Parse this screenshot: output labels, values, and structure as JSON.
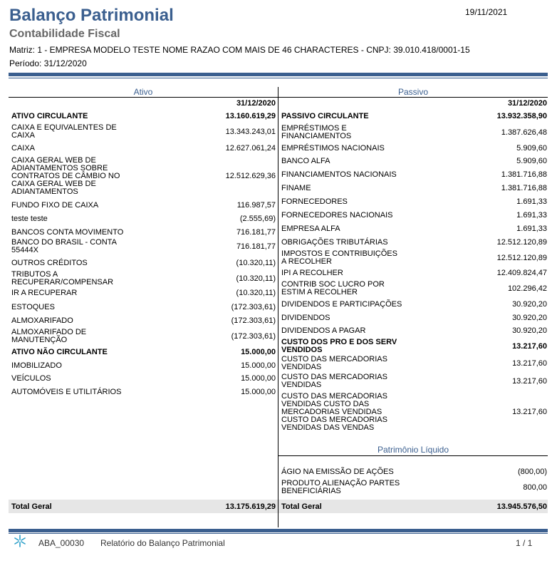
{
  "header": {
    "title": "Balanço Patrimonial",
    "subtitle": "Contabilidade Fiscal",
    "company": "Matriz: 1 - EMPRESA MODELO TESTE NOME RAZAO COM MAIS DE 46 CHARACTERES - CNPJ: 39.010.418/0001-15",
    "period": "Período: 31/12/2020",
    "date": "19/11/2021"
  },
  "ativo": {
    "heading": "Ativo",
    "date_col": "31/12/2020",
    "rows": [
      {
        "label": "ATIVO CIRCULANTE",
        "value": "13.160.619,29",
        "bold": true
      },
      {
        "label": "CAIXA E EQUIVALENTES DE CAIXA",
        "value": "13.343.243,01"
      },
      {
        "label": "CAIXA",
        "value": "12.627.061,24"
      },
      {
        "label": "CAIXA GERAL WEB DE ADIANTAMENTOS SOBRE CONTRATOS DE CÂMBIO NO CAIXA GERAL WEB DE ADIANTAMENTOS",
        "value": "12.512.629,36"
      },
      {
        "label": "FUNDO FIXO DE CAIXA",
        "value": "116.987,57"
      },
      {
        "label": "teste teste",
        "value": "(2.555,69)"
      },
      {
        "label": "BANCOS CONTA MOVIMENTO",
        "value": "716.181,77"
      },
      {
        "label": "BANCO DO BRASIL - CONTA 55444X",
        "value": "716.181,77"
      },
      {
        "label": "OUTROS CRÉDITOS",
        "value": "(10.320,11)"
      },
      {
        "label": "TRIBUTOS A RECUPERAR/COMPENSAR",
        "value": "(10.320,11)"
      },
      {
        "label": "IR A RECUPERAR",
        "value": "(10.320,11)"
      },
      {
        "label": "ESTOQUES",
        "value": "(172.303,61)"
      },
      {
        "label": "ALMOXARIFADO",
        "value": "(172.303,61)"
      },
      {
        "label": "ALMOXARIFADO DE MANUTENÇÃO",
        "value": "(172.303,61)"
      },
      {
        "label": "ATIVO NÃO CIRCULANTE",
        "value": "15.000,00",
        "bold": true
      },
      {
        "label": "IMOBILIZADO",
        "value": "15.000,00"
      },
      {
        "label": "VEÍCULOS",
        "value": "15.000,00"
      },
      {
        "label": "AUTOMÓVEIS E UTILITÁRIOS",
        "value": "15.000,00"
      }
    ],
    "total_label": "Total Geral",
    "total_value": "13.175.619,29"
  },
  "passivo": {
    "heading": "Passivo",
    "date_col": "31/12/2020",
    "rows": [
      {
        "label": "PASSIVO CIRCULANTE",
        "value": "13.932.358,90",
        "bold": true
      },
      {
        "label": "EMPRÉSTIMOS E FINANCIAMENTOS",
        "value": "1.387.626,48"
      },
      {
        "label": "EMPRÉSTIMOS NACIONAIS",
        "value": "5.909,60"
      },
      {
        "label": "BANCO ALFA",
        "value": "5.909,60"
      },
      {
        "label": "FINANCIAMENTOS NACIONAIS",
        "value": "1.381.716,88"
      },
      {
        "label": "FINAME",
        "value": "1.381.716,88"
      },
      {
        "label": "FORNECEDORES",
        "value": "1.691,33"
      },
      {
        "label": "FORNECEDORES NACIONAIS",
        "value": "1.691,33"
      },
      {
        "label": "EMPRESA ALFA",
        "value": "1.691,33"
      },
      {
        "label": "OBRIGAÇÕES TRIBUTÁRIAS",
        "value": "12.512.120,89"
      },
      {
        "label": "IMPOSTOS E CONTRIBUIÇÕES A RECOLHER",
        "value": "12.512.120,89"
      },
      {
        "label": "IPI A RECOLHER",
        "value": "12.409.824,47"
      },
      {
        "label": "CONTRIB SOC LUCRO POR ESTIM A RECOLHER",
        "value": "102.296,42"
      },
      {
        "label": "DIVIDENDOS E PARTICIPAÇÕES",
        "value": "30.920,20"
      },
      {
        "label": "DIVIDENDOS",
        "value": "30.920,20"
      },
      {
        "label": "DIVIDENDOS A PAGAR",
        "value": "30.920,20"
      },
      {
        "label": "CUSTO DOS PRO E DOS SERV VENDIDOS",
        "value": "13.217,60",
        "bold": true
      },
      {
        "label": "CUSTO DAS MERCADORIAS VENDIDAS",
        "value": "13.217,60"
      },
      {
        "label": "CUSTO DAS MERCADORIAS VENDIDAS",
        "value": "13.217,60"
      },
      {
        "label": "CUSTO DAS MERCADORIAS VENDIDAS CUSTO DAS MERCADORIAS VENDIDAS CUSTO DAS MERCADORIAS VENDIDAS DAS VENDAS",
        "value": "13.217,60"
      }
    ],
    "pl_heading": "Patrimônio Líquido",
    "pl_rows": [
      {
        "label": "ÁGIO NA EMISSÃO DE AÇÕES",
        "value": "(800,00)"
      },
      {
        "label": "PRODUTO ALIENAÇÃO PARTES BENEFICIÁRIAS",
        "value": "800,00"
      }
    ],
    "total_label": "Total Geral",
    "total_value": "13.945.576,50"
  },
  "footer": {
    "logo_icon": "asterisk-logo-icon",
    "code": "ABA_00030",
    "name": "Relatório do Balanço Patrimonial",
    "page": "1 / 1"
  },
  "colors": {
    "accent": "#3b5f8f",
    "total_band": "#e6e6e6"
  }
}
